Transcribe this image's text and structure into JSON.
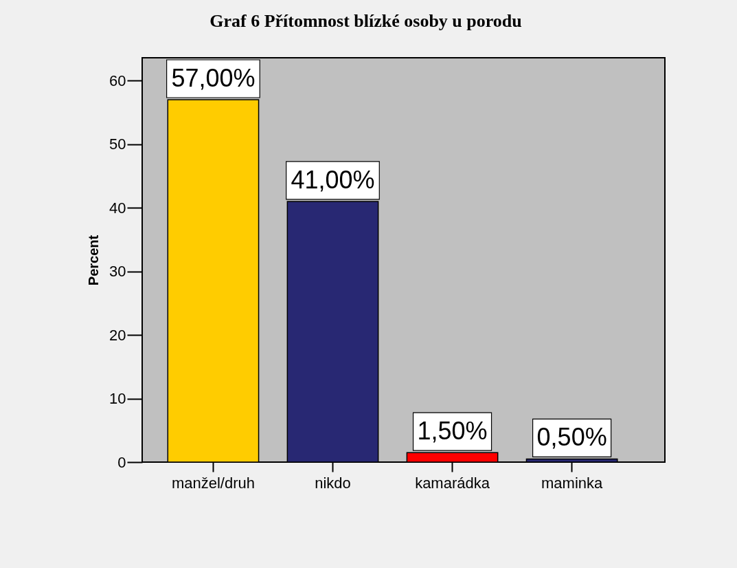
{
  "chart_data": {
    "type": "bar",
    "title": "Graf 6 Přítomnost blízké osoby u porodu",
    "ylabel": "Percent",
    "categories": [
      "manžel/druh",
      "nikdo",
      "kamarádka",
      "maminka"
    ],
    "values": [
      57,
      41,
      1.5,
      0.5
    ],
    "colors": [
      "#ffcc00",
      "#282873",
      "#ff0000",
      "#282873"
    ],
    "value_labels": [
      "57,00%",
      "41,00%",
      "1,50%",
      "0,50%"
    ],
    "ylim": [
      0,
      63.6
    ],
    "yticks": [
      0,
      10,
      20,
      30,
      40,
      50,
      60
    ]
  }
}
